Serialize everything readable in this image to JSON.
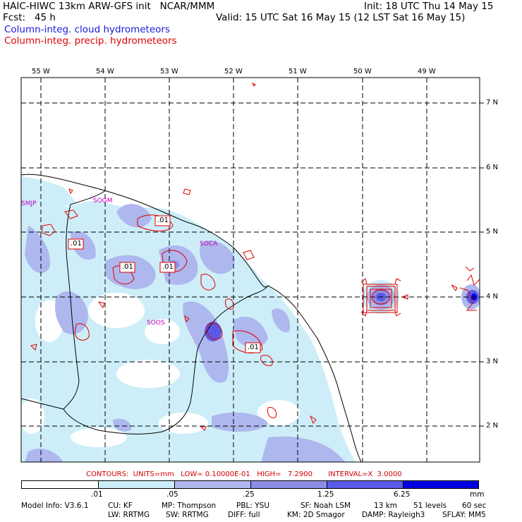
{
  "header": {
    "line1_left": "HAIC-HIWC 13km ARW-GFS init   NCAR/MMM",
    "line1_right": "Init: 18 UTC Thu 14 May 15",
    "line2_left": "Fcst:   45 h",
    "line2_right": "Valid: 15 UTC Sat 16 May 15 (12 LST Sat 16 May 15)",
    "field1": "Column-integ. cloud hydrometeors",
    "field2": "Column-integ. precip. hydrometeors",
    "field1_color": "#1a1adb",
    "field2_color": "#e00000"
  },
  "map": {
    "lon_labels": [
      "55 W",
      "54 W",
      "53 W",
      "52 W",
      "51 W",
      "50 W",
      "49 W"
    ],
    "lat_labels": [
      "7 N",
      "6 N",
      "5 N",
      "4 N",
      "3 N",
      "2 N"
    ],
    "stations": [
      "SMJP",
      "SOGM",
      "SOCA",
      "SOOS"
    ],
    "contour_label": ".01"
  },
  "contour_info": {
    "text": "CONTOURS:  UNITS=mm   LOW= 0.10000E-01   HIGH=   7.2900       INTERVAL=X  3.0000"
  },
  "colorbar": {
    "tick_labels": [
      ".01",
      ".05",
      ".25",
      "1.25",
      "6.25"
    ],
    "units": "mm",
    "colors": [
      "#ffffff",
      "#cdeef8",
      "#aeb7ee",
      "#8c8ce6",
      "#5a5ae6",
      "#2c2cde",
      "#0000e0"
    ]
  },
  "model_info": {
    "line1": [
      "Model Info: V3.6.1",
      "CU: KF",
      "MP: Thompson",
      "PBL: YSU",
      "SF: Noah LSM",
      "13 km",
      "51 levels",
      "60 sec"
    ],
    "line2": [
      "LW: RRTMG",
      "SW: RRTMG",
      "DIFF: full",
      "KM: 2D Smagor",
      "DAMP: Rayleigh3",
      "SFLAY: MM5"
    ]
  }
}
